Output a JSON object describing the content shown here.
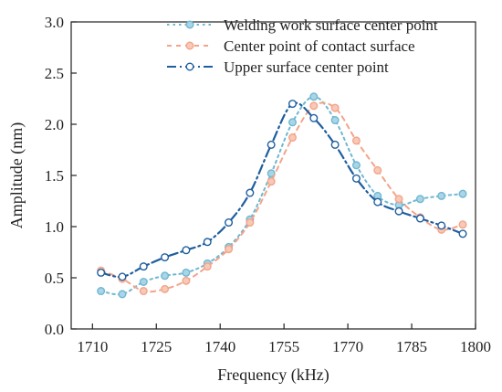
{
  "chart_data": {
    "type": "line",
    "xlabel": "Frequency (kHz)",
    "ylabel": "Amplitude (nm)",
    "xlim": [
      1705,
      1800
    ],
    "ylim": [
      0.0,
      3.0
    ],
    "x_ticks": [
      "1710",
      "1725",
      "1740",
      "1755",
      "1770",
      "1785",
      "1800"
    ],
    "y_ticks": [
      "0.0",
      "0.5",
      "1.0",
      "1.5",
      "2.0",
      "2.5",
      "3.0"
    ],
    "grid": false,
    "legend_position": "top-right",
    "series": [
      {
        "name": "Welding work surface center point",
        "color": "#6fb7d2",
        "marker_fill": "#a9d5e6",
        "line_style": "dotted",
        "x": [
          1712,
          1717,
          1722,
          1727,
          1732,
          1737,
          1742,
          1747,
          1752,
          1757,
          1762,
          1767,
          1772,
          1777,
          1782,
          1787,
          1792,
          1797
        ],
        "y": [
          0.37,
          0.34,
          0.46,
          0.52,
          0.55,
          0.64,
          0.8,
          1.07,
          1.52,
          2.02,
          2.27,
          2.04,
          1.6,
          1.3,
          1.21,
          1.27,
          1.3,
          1.32
        ]
      },
      {
        "name": "Center point of contact surface",
        "color": "#f3a489",
        "marker_fill": "#f8c9b7",
        "line_style": "dashed",
        "x": [
          1712,
          1717,
          1722,
          1727,
          1732,
          1737,
          1742,
          1747,
          1752,
          1757,
          1762,
          1767,
          1772,
          1777,
          1782,
          1787,
          1792,
          1797
        ],
        "y": [
          0.57,
          0.49,
          0.37,
          0.39,
          0.47,
          0.61,
          0.78,
          1.04,
          1.44,
          1.87,
          2.18,
          2.16,
          1.84,
          1.55,
          1.27,
          1.09,
          0.97,
          1.02
        ]
      },
      {
        "name": "Upper surface center point",
        "color": "#1f5e9e",
        "marker_fill": "#ffffff",
        "line_style": "dash-dot",
        "x": [
          1712,
          1717,
          1722,
          1727,
          1732,
          1737,
          1742,
          1747,
          1752,
          1757,
          1762,
          1767,
          1772,
          1777,
          1782,
          1787,
          1792,
          1797
        ],
        "y": [
          0.55,
          0.51,
          0.61,
          0.7,
          0.77,
          0.85,
          1.04,
          1.33,
          1.8,
          2.2,
          2.06,
          1.8,
          1.47,
          1.24,
          1.15,
          1.08,
          1.01,
          0.93
        ]
      }
    ]
  }
}
